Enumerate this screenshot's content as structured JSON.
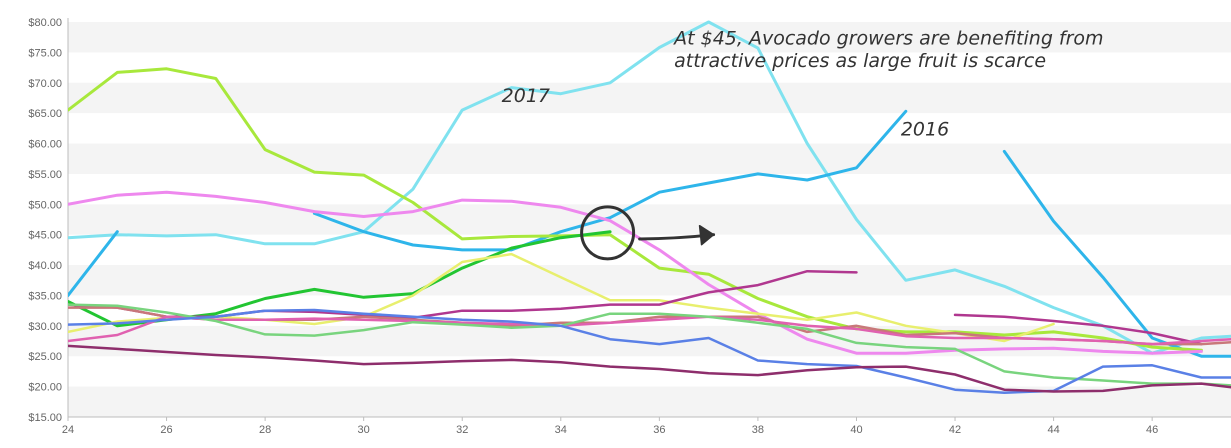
{
  "chart_data": {
    "type": "line",
    "x": [
      24,
      25,
      26,
      27,
      28,
      29,
      30,
      31,
      32,
      33,
      34,
      35,
      36,
      37,
      38,
      39,
      40,
      41,
      42,
      43,
      44,
      45,
      46,
      47,
      48
    ],
    "xlim": [
      24,
      47.6
    ],
    "ylim": [
      15,
      80
    ],
    "x_ticks": [
      "24",
      "26",
      "28",
      "30",
      "32",
      "34",
      "36",
      "38",
      "40",
      "42",
      "44",
      "46"
    ],
    "x_tick_values": [
      24,
      26,
      28,
      30,
      32,
      34,
      36,
      38,
      40,
      42,
      44,
      46
    ],
    "y_ticks": [
      "$15.00",
      "$20.00",
      "$25.00",
      "$30.00",
      "$35.00",
      "$40.00",
      "$45.00",
      "$50.00",
      "$55.00",
      "$60.00",
      "$65.00",
      "$70.00",
      "$75.00",
      "$80.00"
    ],
    "y_tick_values": [
      15,
      20,
      25,
      30,
      35,
      40,
      45,
      50,
      55,
      60,
      65,
      70,
      75,
      80
    ],
    "grid": "horizontal bands",
    "legend": "none",
    "series": [
      {
        "color": "#80e2ef",
        "width": 3,
        "values": [
          44.5,
          45.0,
          44.8,
          45.0,
          43.5,
          43.5,
          45.5,
          52.5,
          65.5,
          69.2,
          68.2,
          70.0,
          75.8,
          80.0,
          75.7,
          60.0,
          47.5,
          37.5,
          39.2,
          36.5,
          33.0,
          30.0,
          25.5,
          28.0,
          28.5
        ]
      },
      {
        "color": "#2eb5ea",
        "width": 3,
        "values": [
          35.0,
          45.5,
          null,
          null,
          null,
          48.5,
          45.5,
          43.3,
          42.5,
          42.5,
          45.5,
          47.8,
          52.0,
          53.5,
          55.0,
          54.0,
          56.0,
          65.3,
          null,
          58.7,
          47.2,
          38.0,
          28.0,
          25.0,
          25.0
        ]
      },
      {
        "color": "#a8e83c",
        "width": 3,
        "values": [
          65.5,
          71.7,
          72.3,
          70.7,
          59.0,
          55.3,
          54.8,
          50.3,
          44.3,
          44.7,
          44.8,
          45.0,
          39.5,
          38.5,
          34.5,
          31.5,
          29.5,
          29.0,
          29.0,
          28.5,
          29.0,
          28.0,
          26.5,
          26.0,
          null
        ]
      },
      {
        "color": "#ee88ee",
        "width": 3,
        "values": [
          50.0,
          51.5,
          52.0,
          51.3,
          50.3,
          48.8,
          48.0,
          48.8,
          50.7,
          50.5,
          49.5,
          47.3,
          42.5,
          36.8,
          32.0,
          27.8,
          25.5,
          25.5,
          26.0,
          26.2,
          26.3,
          25.8,
          25.5,
          25.8,
          null
        ]
      },
      {
        "color": "#22c532",
        "width": 3,
        "values": [
          34.0,
          30.0,
          31.0,
          32.0,
          34.5,
          36.0,
          34.7,
          35.3,
          39.5,
          42.8,
          44.5,
          45.5,
          null,
          null,
          null,
          null,
          null,
          null,
          null,
          null,
          null,
          null,
          null,
          null,
          null
        ]
      },
      {
        "color": "#e8ef6e",
        "width": 2.5,
        "values": [
          29.0,
          30.7,
          31.3,
          31.5,
          31.0,
          30.3,
          31.5,
          35.0,
          40.5,
          41.8,
          38.0,
          34.2,
          34.2,
          33.0,
          32.0,
          31.0,
          32.2,
          30.0,
          28.8,
          27.5,
          30.3,
          null,
          null,
          null,
          null
        ]
      },
      {
        "color": "#b0378f",
        "width": 2.5,
        "values": [
          33.5,
          33.0,
          31.5,
          31.5,
          32.5,
          32.3,
          31.8,
          31.3,
          32.5,
          32.5,
          32.8,
          33.5,
          33.5,
          35.5,
          36.7,
          39.0,
          38.8,
          null,
          31.8,
          31.5,
          30.8,
          30.0,
          28.8,
          27.0,
          null
        ]
      },
      {
        "color": "#c8787a",
        "width": 2.5,
        "values": [
          33.0,
          33.0,
          31.5,
          31.0,
          31.0,
          31.0,
          31.5,
          31.0,
          30.5,
          30.0,
          30.5,
          30.5,
          31.5,
          31.5,
          31.5,
          29.0,
          30.0,
          28.5,
          28.8,
          28.0,
          27.8,
          27.5,
          27.0,
          27.0,
          27.5
        ]
      },
      {
        "color": "#e061b0",
        "width": 2.5,
        "values": [
          27.5,
          28.5,
          31.5,
          31.0,
          31.0,
          31.2,
          31.0,
          30.8,
          30.5,
          30.3,
          30.0,
          30.5,
          31.0,
          31.5,
          31.0,
          30.0,
          29.5,
          28.3,
          28.0,
          28.0,
          27.8,
          27.5,
          27.0,
          27.5,
          28.0
        ]
      },
      {
        "color": "#79d47e",
        "width": 2.5,
        "values": [
          33.5,
          33.3,
          32.2,
          30.8,
          28.6,
          28.4,
          29.3,
          30.6,
          30.2,
          29.7,
          30.0,
          32.0,
          32.0,
          31.5,
          30.5,
          29.5,
          27.2,
          26.5,
          26.2,
          22.5,
          21.5,
          21.0,
          20.5,
          20.5,
          20.0
        ]
      },
      {
        "color": "#5a80e6",
        "width": 2.5,
        "values": [
          30.2,
          30.4,
          31.0,
          31.5,
          32.5,
          32.6,
          32.0,
          31.5,
          31.0,
          30.7,
          30.0,
          27.8,
          27.0,
          28.0,
          24.3,
          23.7,
          23.4,
          21.5,
          19.5,
          19.0,
          19.3,
          23.3,
          23.5,
          21.5,
          21.5
        ]
      },
      {
        "color": "#8e2e6c",
        "width": 2.5,
        "values": [
          26.7,
          26.2,
          25.7,
          25.2,
          24.8,
          24.3,
          23.7,
          23.9,
          24.2,
          24.4,
          24.0,
          23.3,
          22.9,
          22.2,
          21.9,
          22.7,
          23.2,
          23.3,
          22.0,
          19.5,
          19.2,
          19.3,
          20.2,
          20.5,
          19.5
        ]
      }
    ],
    "annotations": [
      {
        "text": "At $45, Avocado growers are benefiting from",
        "x": 36.3,
        "y": 76.3
      },
      {
        "text": "attractive prices as large fruit is scarce",
        "x": 36.3,
        "y": 72.6
      },
      {
        "text": "2017",
        "x": 32.8,
        "y": 66.8
      },
      {
        "text": "2016",
        "x": 40.9,
        "y": 61.3
      }
    ],
    "highlight": {
      "shape": "circle",
      "x": 34.95,
      "y": 45.3
    },
    "arrow": {
      "from": [
        35.6,
        44.3
      ],
      "to": [
        37.1,
        45.0
      ]
    }
  }
}
